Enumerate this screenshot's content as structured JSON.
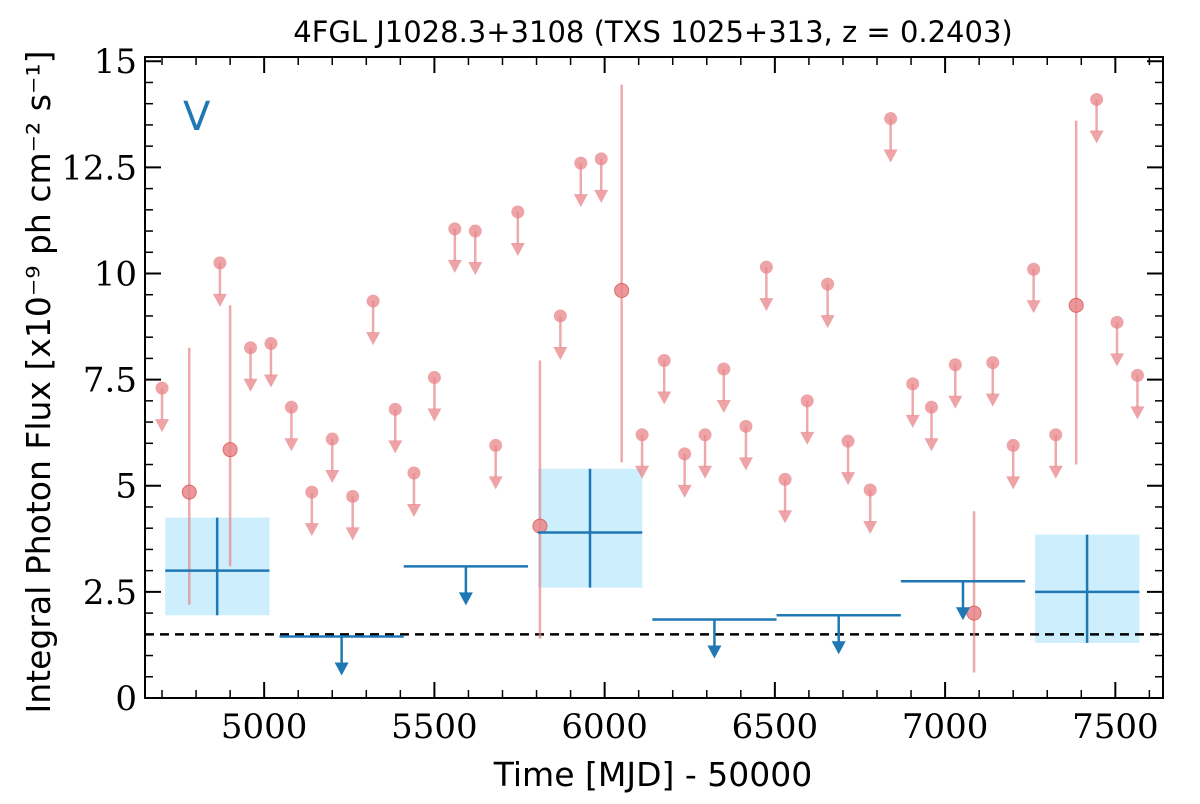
{
  "chart_data": {
    "type": "scatter",
    "title": "4FGL J1028.3+3108 (TXS 1025+313, z = 0.2403)",
    "xlabel": "Time [MJD] - 50000",
    "ylabel": "Integral Photon Flux [x10⁻⁹ ph cm⁻² s⁻¹]",
    "panel_label": "V",
    "xlim": [
      4650,
      7640
    ],
    "ylim": [
      0,
      15.1
    ],
    "xticks": [
      5000,
      5500,
      6000,
      6500,
      7000,
      7500
    ],
    "xtick_labels": [
      "5000",
      "5500",
      "6000",
      "6500",
      "7000",
      "7500"
    ],
    "yticks": [
      0,
      2.5,
      5,
      7.5,
      10,
      12.5,
      15
    ],
    "ytick_labels": [
      "0",
      "2.5",
      "5",
      "7.5",
      "10",
      "12.5",
      "15"
    ],
    "grid": false,
    "reference_line": {
      "y": 1.5,
      "style": "dashed",
      "color": "#000000"
    },
    "colors": {
      "short_bins": "#e8868a",
      "long_bins": "#1f77b4",
      "long_bin_box": "#cdeefc"
    },
    "series": [
      {
        "marker": "circle",
        "color": "#e8868a",
        "upper_limits": [
          {
            "x": 4700,
            "y": 7.3
          },
          {
            "x": 4870,
            "y": 10.25
          },
          {
            "x": 4960,
            "y": 8.25
          },
          {
            "x": 5020,
            "y": 8.35
          },
          {
            "x": 5080,
            "y": 6.85
          },
          {
            "x": 5140,
            "y": 4.85
          },
          {
            "x": 5200,
            "y": 6.1
          },
          {
            "x": 5260,
            "y": 4.75
          },
          {
            "x": 5320,
            "y": 9.35
          },
          {
            "x": 5385,
            "y": 6.8
          },
          {
            "x": 5440,
            "y": 5.3
          },
          {
            "x": 5500,
            "y": 7.55
          },
          {
            "x": 5560,
            "y": 11.05
          },
          {
            "x": 5620,
            "y": 11.0
          },
          {
            "x": 5680,
            "y": 5.95
          },
          {
            "x": 5745,
            "y": 11.45
          },
          {
            "x": 5870,
            "y": 9.0
          },
          {
            "x": 5930,
            "y": 12.6
          },
          {
            "x": 5990,
            "y": 12.7
          },
          {
            "x": 6110,
            "y": 6.2
          },
          {
            "x": 6175,
            "y": 7.95
          },
          {
            "x": 6235,
            "y": 5.75
          },
          {
            "x": 6295,
            "y": 6.2
          },
          {
            "x": 6350,
            "y": 7.75
          },
          {
            "x": 6415,
            "y": 6.4
          },
          {
            "x": 6475,
            "y": 10.15
          },
          {
            "x": 6530,
            "y": 5.15
          },
          {
            "x": 6595,
            "y": 7.0
          },
          {
            "x": 6655,
            "y": 9.75
          },
          {
            "x": 6715,
            "y": 6.05
          },
          {
            "x": 6780,
            "y": 4.9
          },
          {
            "x": 6840,
            "y": 13.65
          },
          {
            "x": 6905,
            "y": 7.4
          },
          {
            "x": 6960,
            "y": 6.85
          },
          {
            "x": 7030,
            "y": 7.85
          },
          {
            "x": 7140,
            "y": 7.9
          },
          {
            "x": 7200,
            "y": 5.95
          },
          {
            "x": 7260,
            "y": 10.1
          },
          {
            "x": 7325,
            "y": 6.2
          },
          {
            "x": 7445,
            "y": 14.1
          },
          {
            "x": 7505,
            "y": 8.85
          },
          {
            "x": 7565,
            "y": 7.6
          }
        ],
        "detections": [
          {
            "x": 4780,
            "y": 4.85,
            "y_low": 2.2,
            "y_high": 8.25
          },
          {
            "x": 4900,
            "y": 5.85,
            "y_low": 3.1,
            "y_high": 9.25
          },
          {
            "x": 5810,
            "y": 4.05,
            "y_low": 1.4,
            "y_high": 7.95
          },
          {
            "x": 6050,
            "y": 9.6,
            "y_low": 5.55,
            "y_high": 14.45
          },
          {
            "x": 7085,
            "y": 2.0,
            "y_low": 0.6,
            "y_high": 4.4
          },
          {
            "x": 7385,
            "y": 9.25,
            "y_low": 5.5,
            "y_high": 13.6
          }
        ]
      },
      {
        "marker": "bar",
        "color": "#1f77b4",
        "upper_limits": [
          {
            "x0": 5045,
            "x1": 5410,
            "y": 1.45
          },
          {
            "x0": 5410,
            "x1": 5775,
            "y": 3.1
          },
          {
            "x0": 6140,
            "x1": 6505,
            "y": 1.85
          },
          {
            "x0": 6505,
            "x1": 6870,
            "y": 1.95
          },
          {
            "x0": 6870,
            "x1": 7235,
            "y": 2.75
          }
        ],
        "detections": [
          {
            "x0": 4680,
            "x1": 5045,
            "x": 4862,
            "y": 3.0,
            "y_low": 1.95,
            "y_high": 4.25
          },
          {
            "x0": 5775,
            "x1": 6140,
            "x": 5957,
            "y": 3.9,
            "y_low": 2.6,
            "y_high": 5.4
          },
          {
            "x0": 7235,
            "x1": 7600,
            "x": 7417,
            "y": 2.5,
            "y_low": 1.3,
            "y_high": 3.85
          }
        ]
      }
    ]
  }
}
